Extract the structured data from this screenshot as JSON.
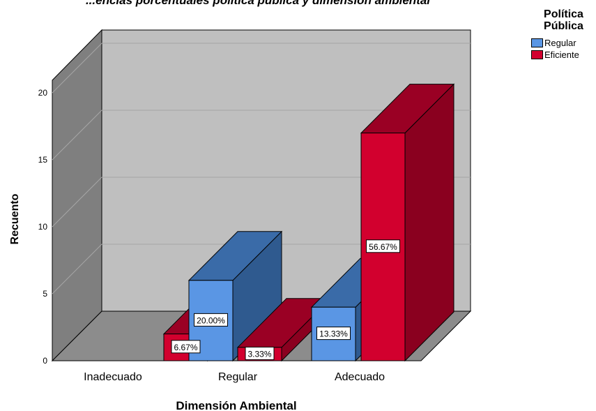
{
  "chart_data": {
    "type": "bar",
    "title": "",
    "title_partial": "...encias porcentuales política pública y dimensión ambiental",
    "xlabel": "Dimensión Ambiental",
    "ylabel": "Recuento",
    "categories": [
      "Inadecuado",
      "Regular",
      "Adecuado"
    ],
    "yticks": [
      "0",
      "5",
      "10",
      "15",
      "20"
    ],
    "ylim": [
      0,
      20
    ],
    "legend_title": "Política\nPública",
    "legend_position": "top-right",
    "grid": true,
    "style": "3d-clustered-bar",
    "series": [
      {
        "name": "Regular",
        "color": "#5a96e4",
        "values": [
          0,
          6,
          4
        ],
        "labels": [
          "",
          "20.00%",
          "13.33%"
        ]
      },
      {
        "name": "Eficiente",
        "color": "#d2002e",
        "values": [
          2,
          1,
          17
        ],
        "labels": [
          "6.67%",
          "3.33%",
          "56.67%"
        ]
      }
    ]
  }
}
